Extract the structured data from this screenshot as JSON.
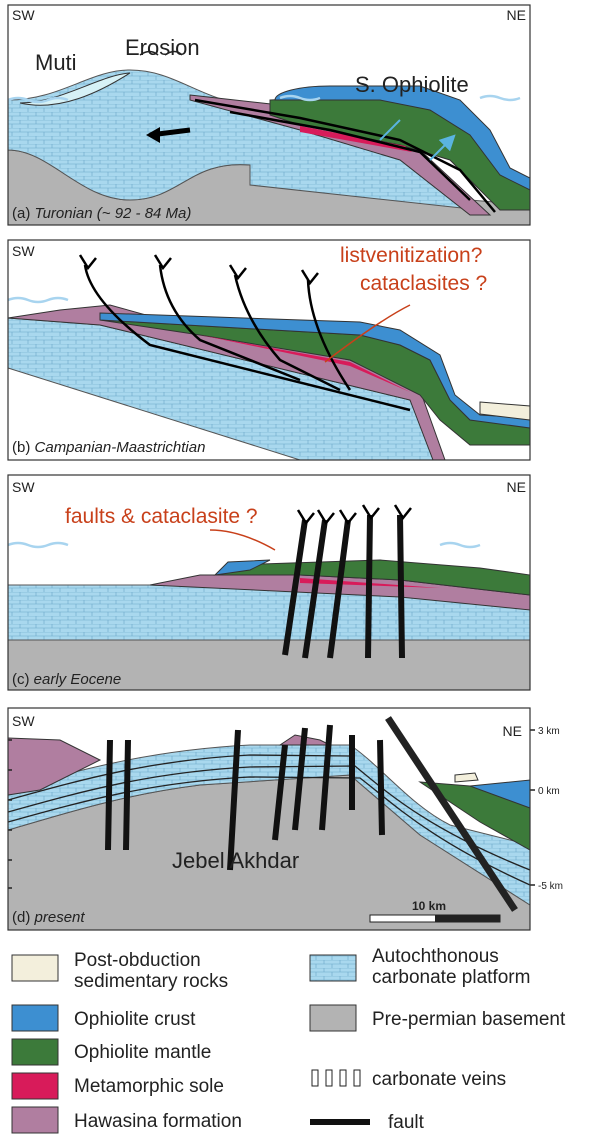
{
  "panels": [
    {
      "label": "(a)",
      "caption": "Turonian (~ 92 - 84 Ma)",
      "sw": "SW",
      "ne": "NE",
      "annotations": [
        "Muti",
        "Erosion",
        "S. Ophiolite"
      ]
    },
    {
      "label": "(b)",
      "caption": "Campanian-Maastrichtian",
      "sw": "SW",
      "annotations": [
        "listvenitization?",
        "cataclasites ?"
      ]
    },
    {
      "label": "(c)",
      "caption": "early Eocene",
      "sw": "SW",
      "ne": "NE",
      "annotations": [
        "faults & cataclasite ?"
      ]
    },
    {
      "label": "(d)",
      "caption": "present",
      "sw": "SW",
      "ne": "NE",
      "annotations": [
        "Jebel Akhdar"
      ],
      "depth_labels": [
        "3 km",
        "0 km",
        "-5 km"
      ],
      "scale_bar": "10 km"
    }
  ],
  "legend": [
    {
      "lines": [
        "Post-obduction",
        "sedimentary rocks"
      ]
    },
    {
      "lines": [
        "Ophiolite crust"
      ]
    },
    {
      "lines": [
        "Ophiolite mantle"
      ]
    },
    {
      "lines": [
        "Metamorphic sole"
      ]
    },
    {
      "lines": [
        "Hawasina formation"
      ]
    },
    {
      "lines": [
        "Autochthonous",
        "carbonate platform"
      ]
    },
    {
      "lines": [
        "Pre-permian basement"
      ]
    },
    {
      "lines": [
        "carbonate veins"
      ]
    },
    {
      "lines": [
        "fault"
      ]
    }
  ]
}
